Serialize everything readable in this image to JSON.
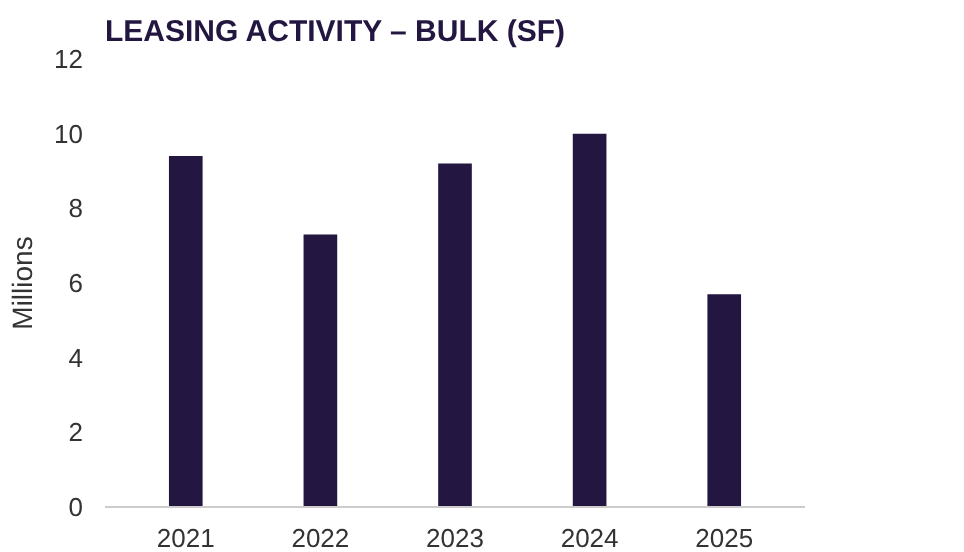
{
  "chart_data": {
    "type": "bar",
    "title": "LEASING ACTIVITY – BULK (SF)",
    "ylabel": "Millions",
    "categories": [
      "2021",
      "2022",
      "2023",
      "2024",
      "2025"
    ],
    "values": [
      9.4,
      7.3,
      9.2,
      10.0,
      5.7
    ],
    "color": "#231641",
    "ylim": [
      0,
      12
    ],
    "yticks": [
      0,
      2,
      4,
      6,
      8,
      10,
      12
    ],
    "grid": false
  }
}
